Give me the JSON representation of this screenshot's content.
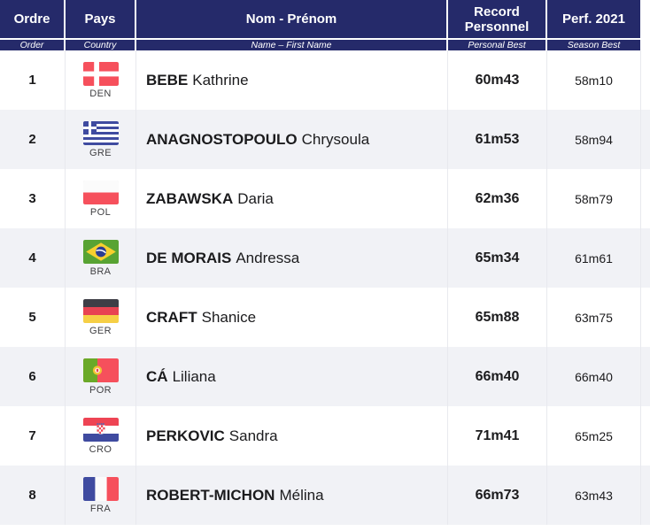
{
  "colors": {
    "header_bg": "#252a6a",
    "header_text": "#ffffff",
    "row_bg": "#ffffff",
    "row_alt_bg": "#f1f2f6",
    "divider": "#e8e9ee",
    "body_text": "#1b1b1d"
  },
  "columns": [
    {
      "fr": "Ordre",
      "en": "Order"
    },
    {
      "fr": "Pays",
      "en": "Country"
    },
    {
      "fr": "Nom - Prénom",
      "en": "Name – First Name"
    },
    {
      "fr": "Record Personnel",
      "en": "Personal Best"
    },
    {
      "fr": "Perf. 2021",
      "en": "Season Best"
    }
  ],
  "rows": [
    {
      "order": "1",
      "country_code": "DEN",
      "flag": "denmark-flag",
      "last_name": "BEBE",
      "first_name": "Kathrine",
      "personal_best": "60m43",
      "season_best": "58m10"
    },
    {
      "order": "2",
      "country_code": "GRE",
      "flag": "greece-flag",
      "last_name": "ANAGNOSTOPOULO",
      "first_name": "Chrysoula",
      "personal_best": "61m53",
      "season_best": "58m94"
    },
    {
      "order": "3",
      "country_code": "POL",
      "flag": "poland-flag",
      "last_name": "ZABAWSKA",
      "first_name": "Daria",
      "personal_best": "62m36",
      "season_best": "58m79"
    },
    {
      "order": "4",
      "country_code": "BRA",
      "flag": "brazil-flag",
      "last_name": "DE MORAIS",
      "first_name": "Andressa",
      "personal_best": "65m34",
      "season_best": "61m61"
    },
    {
      "order": "5",
      "country_code": "GER",
      "flag": "germany-flag",
      "last_name": "CRAFT",
      "first_name": "Shanice",
      "personal_best": "65m88",
      "season_best": "63m75"
    },
    {
      "order": "6",
      "country_code": "POR",
      "flag": "portugal-flag",
      "last_name": "CÁ",
      "first_name": "Liliana",
      "personal_best": "66m40",
      "season_best": "66m40"
    },
    {
      "order": "7",
      "country_code": "CRO",
      "flag": "croatia-flag",
      "last_name": "PERKOVIC",
      "first_name": "Sandra",
      "personal_best": "71m41",
      "season_best": "65m25"
    },
    {
      "order": "8",
      "country_code": "FRA",
      "flag": "france-flag",
      "last_name": "ROBERT-MICHON",
      "first_name": "Mélina",
      "personal_best": "66m73",
      "season_best": "63m43"
    }
  ]
}
